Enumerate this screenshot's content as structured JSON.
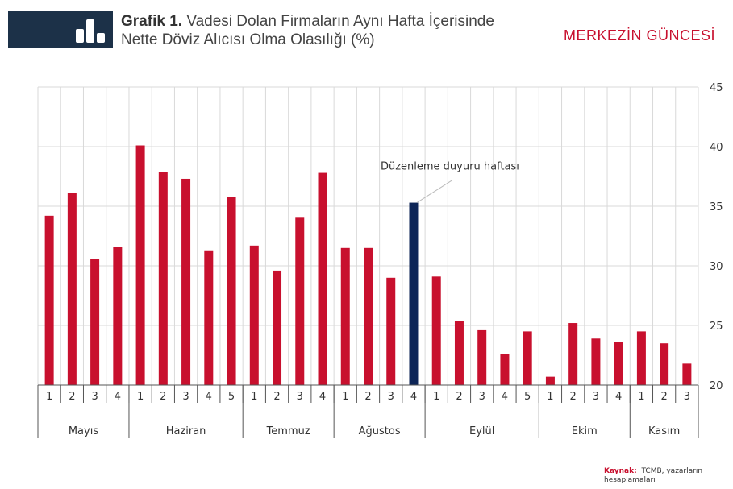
{
  "header": {
    "figure_label": "Grafik 1.",
    "title_line1": "Vadesi Dolan Firmaların Aynı Hafta İçerisinde",
    "title_line2": "Nette Döviz Alıcısı Olma Olasılığı (%)",
    "brand": "MERKEZİN GÜNCESİ",
    "icon": "bar-chart-icon"
  },
  "source": {
    "label": "Kaynak:",
    "text": "TCMB, yazarların hesaplamaları"
  },
  "colors": {
    "bar": "#c8102e",
    "highlight_bar": "#0d2557",
    "header_box": "#1c3148",
    "brand": "#c8102e",
    "grid": "#d9d9d9"
  },
  "chart_data": {
    "type": "bar",
    "title": "Vadesi Dolan Firmaların Aynı Hafta İçerisinde Nette Döviz Alıcısı Olma Olasılığı (%)",
    "xlabel": "",
    "ylabel": "",
    "ylim": [
      20,
      45
    ],
    "yticks": [
      "20",
      "25",
      "30",
      "35",
      "40",
      "45"
    ],
    "y_axis_side": "right",
    "grid": true,
    "groups": [
      {
        "month": "Mayıs",
        "weeks": [
          "1",
          "2",
          "3",
          "4"
        ],
        "values": [
          34.2,
          36.1,
          30.6,
          31.6
        ]
      },
      {
        "month": "Haziran",
        "weeks": [
          "1",
          "2",
          "3",
          "4",
          "5"
        ],
        "values": [
          40.1,
          37.9,
          37.3,
          31.3,
          35.8
        ]
      },
      {
        "month": "Temmuz",
        "weeks": [
          "1",
          "2",
          "3",
          "4"
        ],
        "values": [
          31.7,
          29.6,
          34.1,
          37.8
        ]
      },
      {
        "month": "Ağustos",
        "weeks": [
          "1",
          "2",
          "3",
          "4"
        ],
        "values": [
          31.5,
          31.5,
          29.0,
          35.3
        ]
      },
      {
        "month": "Eylül",
        "weeks": [
          "1",
          "2",
          "3",
          "4",
          "5"
        ],
        "values": [
          29.1,
          25.4,
          24.6,
          22.6,
          24.5
        ]
      },
      {
        "month": "Ekim",
        "weeks": [
          "1",
          "2",
          "3",
          "4"
        ],
        "values": [
          20.7,
          25.2,
          23.9,
          23.6
        ]
      },
      {
        "month": "Kasım",
        "weeks": [
          "1",
          "2",
          "3"
        ],
        "values": [
          24.5,
          23.5,
          21.8
        ]
      }
    ],
    "highlight": {
      "month": "Ağustos",
      "week": "4"
    },
    "annotation": "Düzenleme duyuru haftası"
  }
}
